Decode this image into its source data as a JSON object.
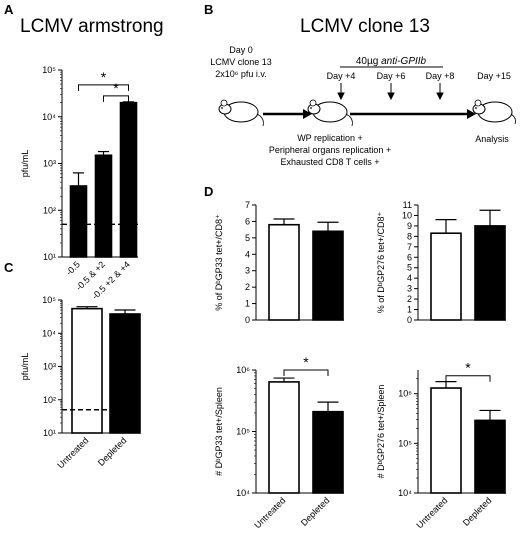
{
  "panel_labels": {
    "a": "A",
    "b": "B",
    "c": "C",
    "d": "D"
  },
  "titles": {
    "a": "LCMV armstrong",
    "b": "LCMV clone 13"
  },
  "timeline": {
    "start_lines": [
      "Day 0",
      "LCMV clone 13",
      "2x10⁶ pfu i.v."
    ],
    "treatment": "40µg anti-GPIIb",
    "treatment_prefix": "40µg ",
    "treatment_italic": "anti-GPIIb",
    "days": [
      "Day +4",
      "Day +6",
      "Day +8",
      "Day +15"
    ],
    "readouts": [
      "WP replication +",
      "Peripheral organs replication +",
      "Exhausted CD8 T cells +"
    ],
    "analysis": "Analysis"
  },
  "significance_mark": "*",
  "chart_data": [
    {
      "id": "A",
      "type": "bar",
      "yscale": "log",
      "ylabel": "pfu/mL",
      "categories": [
        "-0.5",
        "-0.5 & +2",
        "-0.5 +2 & +4"
      ],
      "values": [
        330,
        1500,
        20000
      ],
      "errors": [
        300,
        300,
        800
      ],
      "colors": [
        "#000000",
        "#000000",
        "#000000"
      ],
      "ylim": [
        10,
        100000
      ],
      "yticks": [
        {
          "v": 10,
          "label": "10¹"
        },
        {
          "v": 100,
          "label": "10²"
        },
        {
          "v": 1000,
          "label": "10³"
        },
        {
          "v": 10000,
          "label": "10⁴"
        },
        {
          "v": 100000,
          "label": "10⁵"
        }
      ],
      "detection_limit": 50,
      "significance": [
        {
          "from": 0,
          "to": 2,
          "label": "*",
          "level": 48000
        },
        {
          "from": 1,
          "to": 2,
          "label": "*",
          "level": 28000
        }
      ]
    },
    {
      "id": "C",
      "type": "bar",
      "yscale": "log",
      "ylabel": "pfu/mL",
      "categories": [
        "Untreated",
        "Depleted"
      ],
      "values": [
        55000,
        38000
      ],
      "errors": [
        8000,
        12000
      ],
      "colors": [
        "#ffffff",
        "#000000"
      ],
      "ylim": [
        10,
        100000
      ],
      "yticks": [
        {
          "v": 10,
          "label": "10¹"
        },
        {
          "v": 100,
          "label": "10²"
        },
        {
          "v": 1000,
          "label": "10³"
        },
        {
          "v": 10000,
          "label": "10⁴"
        },
        {
          "v": 100000,
          "label": "10⁵"
        }
      ],
      "detection_limit": 50,
      "significance": []
    },
    {
      "id": "D1",
      "type": "bar",
      "yscale": "linear",
      "ylabel": "% of DᵇGP33 tet+/CD8⁺",
      "categories": [
        "Untreated",
        "Depleted"
      ],
      "values": [
        5.8,
        5.4
      ],
      "errors": [
        0.35,
        0.55
      ],
      "colors": [
        "#ffffff",
        "#000000"
      ],
      "ylim": [
        0,
        7
      ],
      "yticks": [
        {
          "v": 0,
          "label": "0"
        },
        {
          "v": 1,
          "label": "1"
        },
        {
          "v": 2,
          "label": "2"
        },
        {
          "v": 3,
          "label": "3"
        },
        {
          "v": 4,
          "label": "4"
        },
        {
          "v": 5,
          "label": "5"
        },
        {
          "v": 6,
          "label": "6"
        },
        {
          "v": 7,
          "label": "7"
        }
      ],
      "show_xlabels": false,
      "significance": []
    },
    {
      "id": "D2",
      "type": "bar",
      "yscale": "linear",
      "ylabel": "% of DᵇGP276 tet+/CD8⁺",
      "categories": [
        "Untreated",
        "Depleted"
      ],
      "values": [
        8.3,
        9.0
      ],
      "errors": [
        1.3,
        1.5
      ],
      "colors": [
        "#ffffff",
        "#000000"
      ],
      "ylim": [
        0,
        11
      ],
      "yticks": [
        {
          "v": 0,
          "label": "0"
        },
        {
          "v": 1,
          "label": "1"
        },
        {
          "v": 2,
          "label": "2"
        },
        {
          "v": 3,
          "label": "3"
        },
        {
          "v": 4,
          "label": "4"
        },
        {
          "v": 5,
          "label": "5"
        },
        {
          "v": 6,
          "label": "6"
        },
        {
          "v": 7,
          "label": "7"
        },
        {
          "v": 8,
          "label": "8"
        },
        {
          "v": 9,
          "label": "9"
        },
        {
          "v": 10,
          "label": "10"
        },
        {
          "v": 11,
          "label": "11"
        }
      ],
      "show_xlabels": false,
      "significance": []
    },
    {
      "id": "D3",
      "type": "bar",
      "yscale": "log",
      "ylabel": "# DᵇGP33 tet+/Spleen",
      "categories": [
        "Untreated",
        "Depleted"
      ],
      "values": [
        640000,
        210000
      ],
      "errors": [
        100000,
        90000
      ],
      "colors": [
        "#ffffff",
        "#000000"
      ],
      "ylim": [
        10000,
        1000000
      ],
      "yticks": [
        {
          "v": 10000,
          "label": "10⁴"
        },
        {
          "v": 100000,
          "label": "10⁵"
        },
        {
          "v": 1000000,
          "label": "10⁶"
        }
      ],
      "show_xlabels": true,
      "significance": [
        {
          "from": 0,
          "to": 1,
          "label": "*",
          "level": 1000000
        }
      ]
    },
    {
      "id": "D4",
      "type": "bar",
      "yscale": "log",
      "ylabel": "# DᵇGP276 tet+/Spleen",
      "categories": [
        "Untreated",
        "Depleted"
      ],
      "values": [
        1300000,
        290000
      ],
      "errors": [
        450000,
        170000
      ],
      "colors": [
        "#ffffff",
        "#000000"
      ],
      "ylim": [
        10000,
        3000000
      ],
      "yticks": [
        {
          "v": 10000,
          "label": "10⁴"
        },
        {
          "v": 100000,
          "label": "10⁵"
        },
        {
          "v": 1000000,
          "label": "10⁶"
        }
      ],
      "show_xlabels": true,
      "significance": [
        {
          "from": 0,
          "to": 1,
          "label": "*",
          "level": 2300000
        }
      ]
    }
  ]
}
